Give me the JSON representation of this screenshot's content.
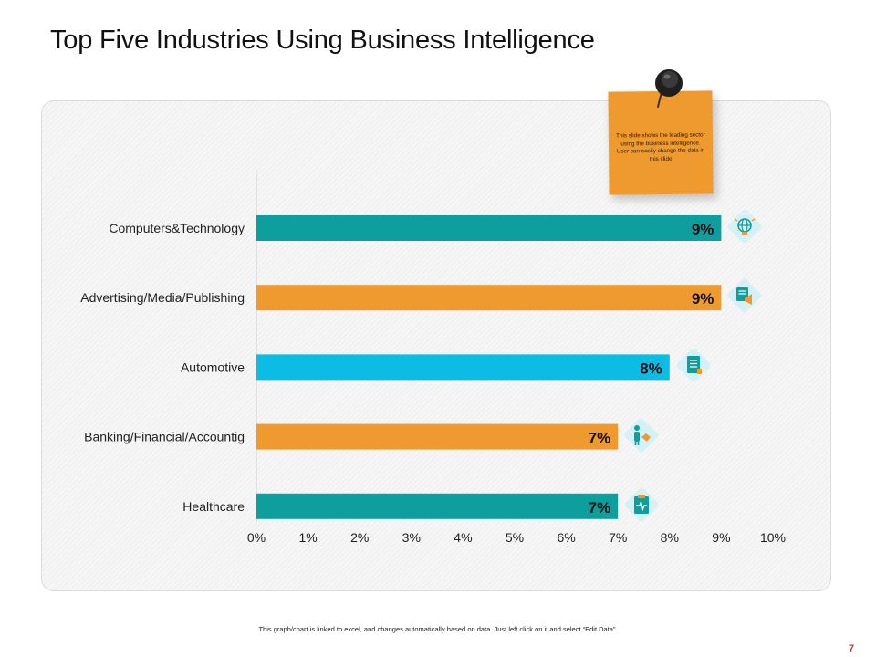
{
  "slide": {
    "title": "Top Five Industries Using Business Intelligence",
    "footer_note": "This graph/chart is linked to excel, and changes automatically based on data. Just left click on it and select “Edit Data”.",
    "page_number": "7"
  },
  "sticky_note": {
    "text": "This slide shows the leading sector using the business intelligence.  User can easily change  the data in this slide",
    "color": "#EF9A2E"
  },
  "chart_data": {
    "type": "bar",
    "orientation": "horizontal",
    "title": "",
    "xlabel": "",
    "ylabel": "",
    "categories": [
      "Computers&Technology",
      "Advertising/Media/Publishing",
      "Automotive",
      "Banking/Financial/Accountig",
      "Healthcare"
    ],
    "values": [
      9,
      9,
      8,
      7,
      7
    ],
    "data_labels": [
      "9%",
      "9%",
      "8%",
      "7%",
      "7%"
    ],
    "bar_colors": [
      "#0E9E9E",
      "#EF9A2E",
      "#0BBCE4",
      "#EF9A2E",
      "#0E9E9E"
    ],
    "xlim": [
      0,
      10
    ],
    "x_ticks": [
      0,
      1,
      2,
      3,
      4,
      5,
      6,
      7,
      8,
      9,
      10
    ],
    "x_tick_labels": [
      "0%",
      "1%",
      "2%",
      "3%",
      "4%",
      "5%",
      "6%",
      "7%",
      "8%",
      "9%",
      "10%"
    ],
    "grid": false,
    "legend": "none",
    "bar_icons": [
      "globe-bulb-icon",
      "megaphone-document-icon",
      "document-icon",
      "businessman-handshake-icon",
      "medical-clipboard-icon"
    ]
  }
}
